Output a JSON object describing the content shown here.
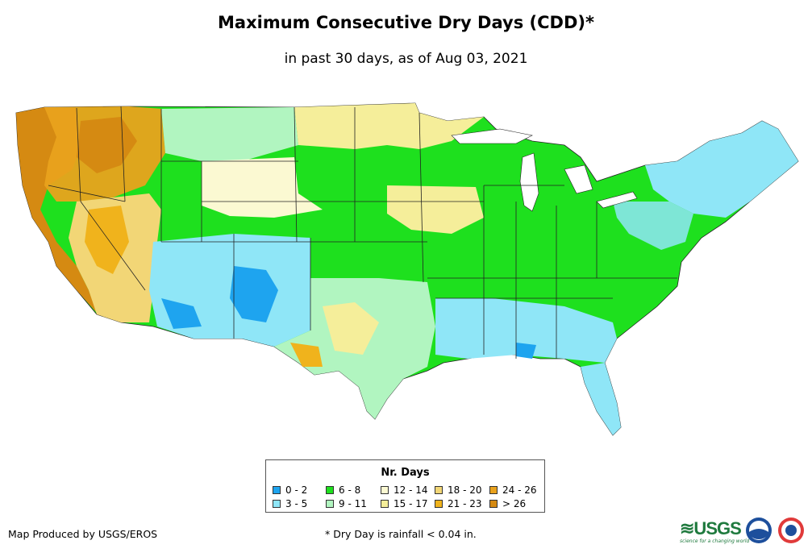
{
  "title": "Maximum Consecutive Dry Days (CDD)*",
  "subtitle": "in past 30 days, as of Aug 03, 2021",
  "legend": {
    "title": "Nr. Days",
    "items": [
      {
        "label": "0 - 2",
        "color": "#1ea4ef"
      },
      {
        "label": "3 - 5",
        "color": "#8fe6f7"
      },
      {
        "label": "6 - 8",
        "color": "#1ee01e"
      },
      {
        "label": "9 - 11",
        "color": "#b1f5c0"
      },
      {
        "label": "12 - 14",
        "color": "#fbf9d2"
      },
      {
        "label": "15 - 17",
        "color": "#f5ee9a"
      },
      {
        "label": "18 - 20",
        "color": "#f2d676"
      },
      {
        "label": "21 - 23",
        "color": "#f0b31c"
      },
      {
        "label": "24 - 26",
        "color": "#e9a21d"
      },
      {
        "label": "> 26",
        "color": "#d58a12"
      }
    ]
  },
  "footer": {
    "producer": "Map Produced by USGS/EROS",
    "note": "* Dry Day is rainfall < 0.04 in."
  },
  "logos": {
    "usgs_text": "≋USGS",
    "usgs_tagline": "science for a changing world"
  }
}
